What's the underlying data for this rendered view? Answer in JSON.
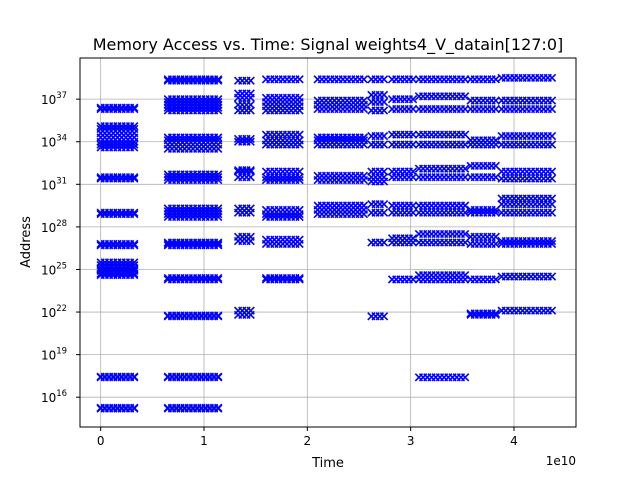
{
  "chart_data": {
    "type": "scatter",
    "title": "Memory Access vs. Time: Signal weights4_V_datain[127:0]",
    "xlabel": "Time",
    "ylabel": "Address",
    "x_offset_label": "1e10",
    "xlim": [
      -2000000000.0,
      46000000000.0
    ],
    "ylim_log10": [
      13.9,
      39.9
    ],
    "yscale": "log",
    "grid": true,
    "marker": "x",
    "color": "#0000ff",
    "x_ticks": [
      {
        "value": 0,
        "label": "0"
      },
      {
        "value": 10000000000.0,
        "label": "1"
      },
      {
        "value": 20000000000.0,
        "label": "2"
      },
      {
        "value": 30000000000.0,
        "label": "3"
      },
      {
        "value": 40000000000.0,
        "label": "4"
      }
    ],
    "y_ticks": [
      {
        "exponent": 16,
        "base": "10",
        "power": "16"
      },
      {
        "exponent": 19,
        "base": "10",
        "power": "19"
      },
      {
        "exponent": 22,
        "base": "10",
        "power": "22"
      },
      {
        "exponent": 25,
        "base": "10",
        "power": "25"
      },
      {
        "exponent": 28,
        "base": "10",
        "power": "28"
      },
      {
        "exponent": 31,
        "base": "10",
        "power": "31"
      },
      {
        "exponent": 34,
        "base": "10",
        "power": "34"
      },
      {
        "exponent": 37,
        "base": "10",
        "power": "37"
      }
    ],
    "series": [
      {
        "note_y_in_log10": true,
        "clusters": [
          {
            "x_start": 0,
            "x_end": 3300000000.0,
            "log10_y": [
              15.2,
              15.25,
              17.4,
              17.45,
              24.6,
              24.7,
              24.9,
              25.0,
              25.1,
              25.3,
              25.5,
              26.7,
              26.8,
              28.9,
              29.0,
              31.4,
              31.5,
              33.6,
              33.8,
              34.0,
              34.3,
              34.6,
              34.9,
              35.1,
              36.3,
              36.4
            ]
          },
          {
            "x_start": 6500000000.0,
            "x_end": 11500000000.0,
            "log10_y": [
              15.2,
              15.25,
              17.4,
              17.45,
              21.7,
              21.75,
              24.3,
              24.4,
              26.7,
              26.8,
              26.9,
              28.7,
              28.9,
              29.1,
              29.3,
              31.3,
              31.5,
              31.7,
              33.5,
              33.8,
              34.1,
              34.3,
              36.2,
              36.4,
              36.6,
              36.8,
              37.0,
              38.3,
              38.4
            ]
          },
          {
            "x_start": 13300000000.0,
            "x_end": 14800000000.0,
            "log10_y": [
              21.8,
              22.1,
              27.0,
              27.3,
              29.0,
              29.3,
              31.5,
              31.9,
              32.0,
              34.0,
              34.2,
              36.2,
              36.6,
              37.1,
              37.4,
              38.3
            ]
          },
          {
            "x_start": 16000000000.0,
            "x_end": 19500000000.0,
            "log10_y": [
              24.3,
              24.4,
              26.8,
              27.1,
              28.7,
              28.9,
              29.2,
              31.3,
              31.5,
              31.9,
              33.8,
              34.1,
              34.5,
              36.2,
              36.5,
              36.8,
              37.1,
              38.4
            ]
          },
          {
            "x_start": 21000000000.0,
            "x_end": 25500000000.0,
            "log10_y": [
              28.9,
              29.2,
              29.5,
              31.3,
              31.6,
              33.8,
              34.1,
              34.3,
              36.3,
              36.6,
              36.9,
              38.4
            ]
          },
          {
            "x_start": 26200000000.0,
            "x_end": 27800000000.0,
            "log10_y": [
              21.7,
              26.9,
              29.0,
              29.6,
              31.2,
              31.5,
              31.9,
              33.8,
              34.4,
              36.2,
              36.8,
              37.3,
              38.4
            ]
          },
          {
            "x_start": 28200000000.0,
            "x_end": 30500000000.0,
            "log10_y": [
              24.3,
              26.9,
              27.2,
              29.0,
              29.5,
              31.5,
              31.9,
              33.8,
              34.5,
              36.3,
              37.0,
              38.4
            ]
          },
          {
            "x_start": 30800000000.0,
            "x_end": 35500000000.0,
            "log10_y": [
              17.4,
              24.3,
              24.6,
              26.9,
              27.5,
              29.0,
              29.5,
              31.5,
              32.1,
              33.8,
              34.5,
              36.3,
              37.2,
              38.4
            ]
          },
          {
            "x_start": 35800000000.0,
            "x_end": 38500000000.0,
            "log10_y": [
              21.8,
              21.9,
              24.3,
              26.8,
              27.3,
              29.0,
              29.2,
              31.5,
              32.3,
              33.8,
              34.1,
              36.3,
              36.9,
              38.4
            ]
          },
          {
            "x_start": 38800000000.0,
            "x_end": 44000000000.0,
            "log10_y": [
              22.1,
              24.5,
              26.8,
              27.0,
              29.0,
              29.6,
              30.0,
              31.4,
              31.9,
              33.8,
              34.4,
              36.3,
              36.9,
              38.5
            ]
          }
        ]
      }
    ]
  }
}
